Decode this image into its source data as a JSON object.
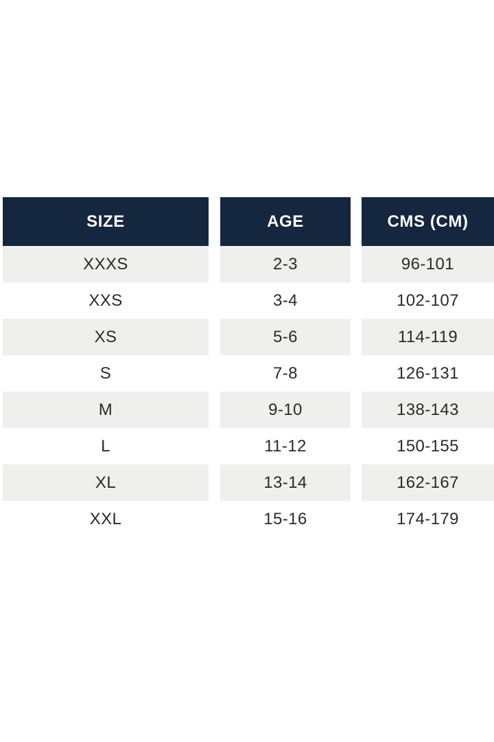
{
  "chart_data": {
    "type": "table",
    "columns": [
      "SIZE",
      "AGE",
      "CMS (CM)"
    ],
    "rows": [
      [
        "XXXS",
        "2-3",
        "96-101"
      ],
      [
        "XXS",
        "3-4",
        "102-107"
      ],
      [
        "XS",
        "5-6",
        "114-119"
      ],
      [
        "S",
        "7-8",
        "126-131"
      ],
      [
        "M",
        "9-10",
        "138-143"
      ],
      [
        "L",
        "11-12",
        "150-155"
      ],
      [
        "XL",
        "13-14",
        "162-167"
      ],
      [
        "XXL",
        "15-16",
        "174-179"
      ]
    ],
    "layout": {
      "striped": true,
      "striped_row_indexes": [
        0,
        2,
        4,
        6
      ],
      "column_gaps": true,
      "header_style": "dark-navy-bold-centered",
      "cell_alignment": "center"
    }
  },
  "colors": {
    "header_bg": "#15263f",
    "header_text": "#ffffff",
    "row_alt_bg": "#efefee",
    "row_bg": "#ffffff",
    "cell_text": "#2a2a2a",
    "page_bg": "#ffffff"
  }
}
